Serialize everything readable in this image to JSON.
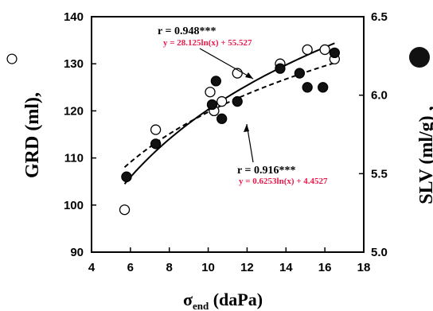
{
  "chart_data": {
    "type": "scatter",
    "xlabel": "σ",
    "xlabel_sub": "end",
    "xlabel_unit": " (daPa)",
    "ylabel_left": "GRD (ml),",
    "ylabel_right": "SLV (ml/g) ,",
    "xlim": [
      4,
      18
    ],
    "ylim_left": [
      90,
      140
    ],
    "ylim_right": [
      5.0,
      6.5
    ],
    "xticks": [
      "4",
      "6",
      "8",
      "10",
      "12",
      "14",
      "16",
      "18"
    ],
    "yticks_left": [
      "90",
      "100",
      "110",
      "120",
      "130",
      "140"
    ],
    "yticks_right": [
      "5.0",
      "5.5",
      "6.0",
      "6.5"
    ],
    "left_marker": "○",
    "right_marker": "●",
    "series": [
      {
        "marker": "open-circle",
        "axis": "left",
        "points": [
          {
            "x": 5.7,
            "y": 99
          },
          {
            "x": 5.8,
            "y": 106
          },
          {
            "x": 7.3,
            "y": 116
          },
          {
            "x": 10.1,
            "y": 124
          },
          {
            "x": 10.3,
            "y": 120
          },
          {
            "x": 10.7,
            "y": 122
          },
          {
            "x": 11.5,
            "y": 128
          },
          {
            "x": 13.7,
            "y": 130
          },
          {
            "x": 15.1,
            "y": 133
          },
          {
            "x": 16.0,
            "y": 133
          },
          {
            "x": 16.5,
            "y": 131
          }
        ]
      },
      {
        "marker": "filled-circle",
        "axis": "right",
        "points": [
          {
            "x": 5.8,
            "y": 5.48
          },
          {
            "x": 7.3,
            "y": 5.69
          },
          {
            "x": 10.2,
            "y": 5.94
          },
          {
            "x": 10.4,
            "y": 6.09
          },
          {
            "x": 10.7,
            "y": 5.85
          },
          {
            "x": 11.5,
            "y": 5.96
          },
          {
            "x": 13.7,
            "y": 6.17
          },
          {
            "x": 14.7,
            "y": 6.14
          },
          {
            "x": 15.1,
            "y": 6.05
          },
          {
            "x": 15.9,
            "y": 6.05
          },
          {
            "x": 16.5,
            "y": 6.27
          }
        ]
      }
    ],
    "fits": [
      {
        "style": "solid",
        "axis": "left",
        "r_label": "r = 0.948***",
        "equation": "y = 28.125ln(x) + 55.527",
        "a": 28.125,
        "b": 55.527,
        "x_range": [
          5.7,
          16.5
        ]
      },
      {
        "style": "dashed",
        "axis": "right",
        "r_label": "r = 0.916***",
        "equation": "y = 0.6253ln(x) + 4.4527",
        "a": 0.6253,
        "b": 4.4527,
        "x_range": [
          5.7,
          16.5
        ]
      }
    ],
    "equation_color": "#e8194a"
  }
}
